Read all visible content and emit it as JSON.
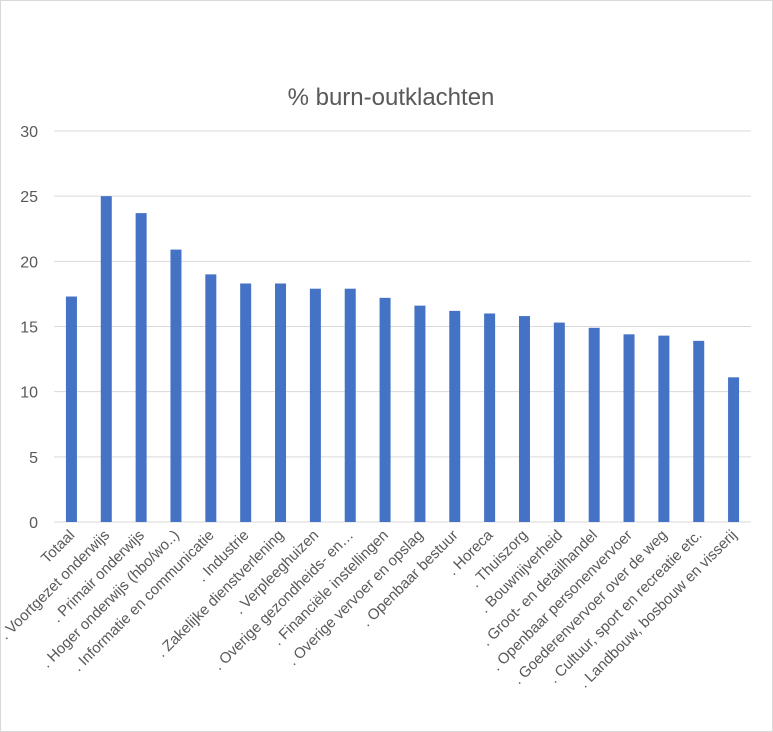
{
  "chart_data": {
    "type": "bar",
    "title": "% burn-outklachten",
    "xlabel": "",
    "ylabel": "",
    "ylim": [
      0,
      30
    ],
    "yticks": [
      0,
      5,
      10,
      15,
      20,
      25,
      30
    ],
    "grid": true,
    "legend": "none",
    "bar_color": "#4472c4",
    "categories": [
      "Totaal",
      ". Voortgezet onderwijs",
      ". Primair onderwijs",
      ". Hoger onderwijs (hbo/wo..)",
      ". Informatie en communicatie",
      ". Industrie",
      ". Zakelijke dienstverlening",
      ". Verpleeghuizen",
      ". Overige gezondheids- en…",
      ". Financiële instellingen",
      ". Overige vervoer en opslag",
      ". Openbaar bestuur",
      ". Horeca",
      ". Thuiszorg",
      ". Bouwnijverheid",
      ". Groot- en detailhandel",
      ". Openbaar personenvervoer",
      ". Goederenvervoer over de weg",
      ". Cultuur, sport en recreatie etc.",
      ". Landbouw, bosbouw en visserij"
    ],
    "values": [
      17.3,
      25.0,
      23.7,
      20.9,
      19.0,
      18.3,
      18.3,
      17.9,
      17.9,
      17.2,
      16.6,
      16.2,
      16.0,
      15.8,
      15.3,
      14.9,
      14.4,
      14.3,
      13.9,
      11.1
    ]
  }
}
